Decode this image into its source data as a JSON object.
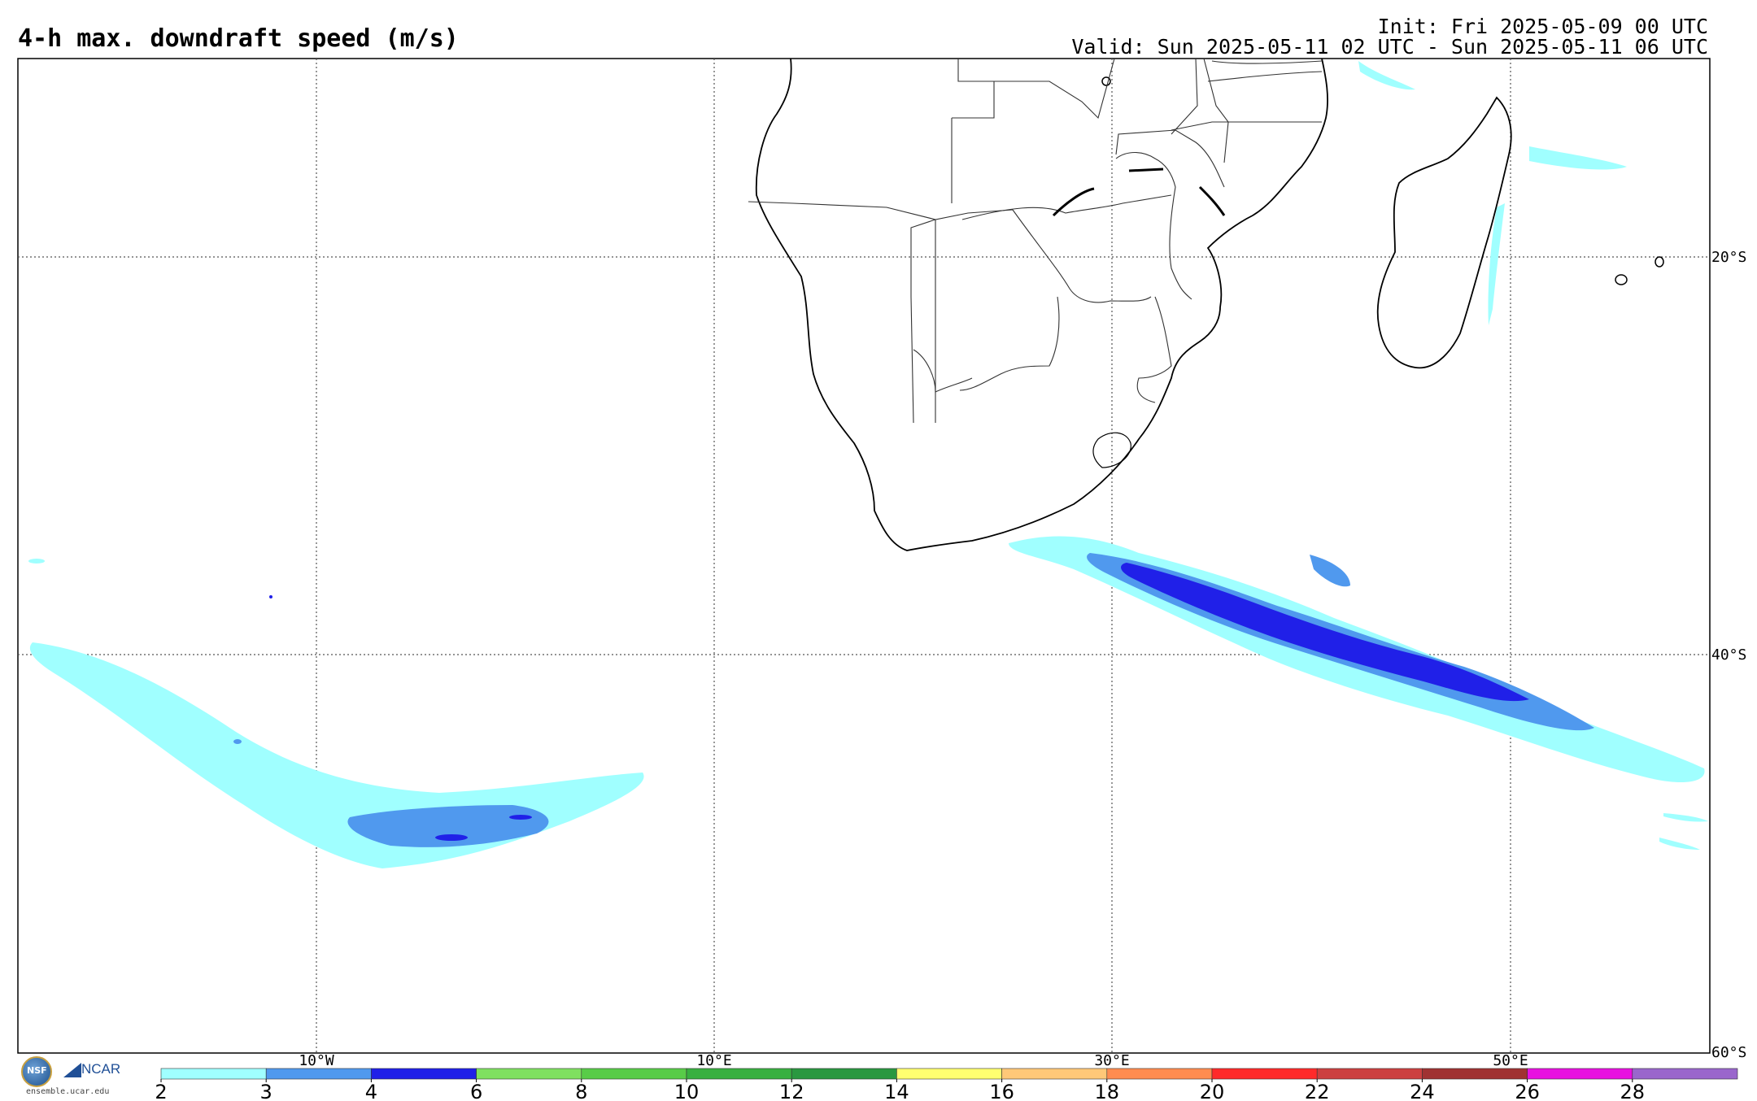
{
  "title": "4-h max. downdraft speed (m/s)",
  "init_text": "Init: Fri 2025-05-09 00 UTC",
  "valid_text": "Valid: Sun 2025-05-11 02 UTC - Sun 2025-05-11 06 UTC",
  "lon_labels": [
    "10°W",
    "10°E",
    "30°E",
    "50°E"
  ],
  "lat_labels": [
    "20°S",
    "40°S",
    "60°S"
  ],
  "colorbar": {
    "ticks": [
      "2",
      "3",
      "4",
      "6",
      "8",
      "10",
      "12",
      "14",
      "16",
      "18",
      "20",
      "22",
      "24",
      "26",
      "28"
    ],
    "colors": [
      "#a0ffff",
      "#5099ee",
      "#2020e8",
      "#7fe060",
      "#58cc48",
      "#38b040",
      "#2a9840",
      "#ffff70",
      "#ffc878",
      "#ff8c50",
      "#ff2a2a",
      "#cc4040",
      "#a03232",
      "#e810e0",
      "#9a66cc"
    ]
  },
  "logos": {
    "nsf_label": "NSF",
    "ncar_label": "NCAR",
    "site": "ensemble.ucar.edu"
  }
}
